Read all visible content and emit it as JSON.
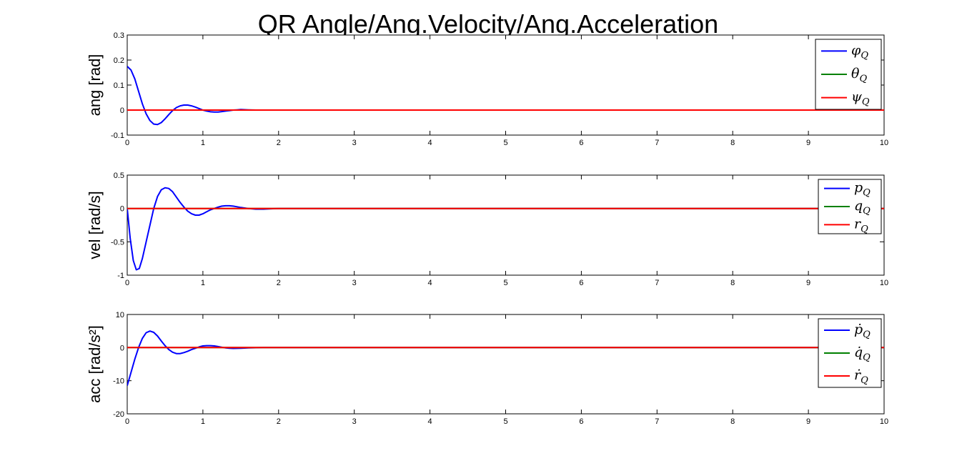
{
  "figure_title": "QR Angle/Ang.Velocity/Ang.Acceleration",
  "colors": {
    "blue": "#0000ff",
    "green": "#008000",
    "red": "#ff0000",
    "axis": "#000000",
    "background": "#ffffff"
  },
  "chart_data": [
    {
      "type": "line",
      "ylabel": "ang [rad]",
      "xlim": [
        0,
        10
      ],
      "ylim": [
        -0.1,
        0.3
      ],
      "xticks": [
        0,
        1,
        2,
        3,
        4,
        5,
        6,
        7,
        8,
        9,
        10
      ],
      "yticks": [
        -0.1,
        0,
        0.1,
        0.2,
        0.3
      ],
      "ytick_labels": [
        "-0.1",
        "0",
        "0.1",
        "0.2",
        "0.3"
      ],
      "grid": false,
      "legend_position": "top-right",
      "series": [
        {
          "name": "φ",
          "subscript": "Q",
          "color": "#0000ff",
          "x": [
            0,
            0.05,
            0.1,
            0.15,
            0.2,
            0.25,
            0.3,
            0.35,
            0.4,
            0.45,
            0.5,
            0.55,
            0.6,
            0.65,
            0.7,
            0.75,
            0.8,
            0.85,
            0.9,
            0.95,
            1.0,
            1.05,
            1.1,
            1.15,
            1.2,
            1.25,
            1.3,
            1.35,
            1.4,
            1.45,
            1.5,
            1.6,
            1.7,
            1.8,
            2.0,
            10
          ],
          "y": [
            0.175,
            0.16,
            0.125,
            0.075,
            0.025,
            -0.015,
            -0.042,
            -0.056,
            -0.058,
            -0.05,
            -0.035,
            -0.018,
            -0.002,
            0.01,
            0.017,
            0.02,
            0.02,
            0.017,
            0.012,
            0.006,
            0.0,
            -0.004,
            -0.007,
            -0.008,
            -0.008,
            -0.006,
            -0.004,
            -0.002,
            0.0,
            0.001,
            0.002,
            0.001,
            0.0,
            0.0,
            0.0,
            0.0
          ]
        },
        {
          "name": "θ",
          "subscript": "Q",
          "color": "#008000",
          "x": [
            0,
            10
          ],
          "y": [
            0,
            0
          ]
        },
        {
          "name": "ψ",
          "subscript": "Q",
          "color": "#ff0000",
          "x": [
            0,
            10
          ],
          "y": [
            0,
            0
          ]
        }
      ]
    },
    {
      "type": "line",
      "ylabel": "vel [rad/s]",
      "xlim": [
        0,
        10
      ],
      "ylim": [
        -1,
        0.5
      ],
      "xticks": [
        0,
        1,
        2,
        3,
        4,
        5,
        6,
        7,
        8,
        9,
        10
      ],
      "yticks": [
        -1,
        -0.5,
        0,
        0.5
      ],
      "ytick_labels": [
        "-1",
        "-0.5",
        "0",
        "0.5"
      ],
      "grid": false,
      "legend_position": "top-right",
      "series": [
        {
          "name": "p",
          "subscript": "Q",
          "color": "#0000ff",
          "x": [
            0,
            0.04,
            0.08,
            0.12,
            0.16,
            0.2,
            0.25,
            0.3,
            0.35,
            0.4,
            0.45,
            0.5,
            0.55,
            0.6,
            0.65,
            0.7,
            0.75,
            0.8,
            0.85,
            0.9,
            0.95,
            1.0,
            1.05,
            1.1,
            1.15,
            1.2,
            1.25,
            1.3,
            1.35,
            1.4,
            1.45,
            1.5,
            1.6,
            1.7,
            1.8,
            1.9,
            2.0,
            10
          ],
          "y": [
            0,
            -0.45,
            -0.78,
            -0.92,
            -0.9,
            -0.75,
            -0.5,
            -0.25,
            0.0,
            0.18,
            0.28,
            0.31,
            0.3,
            0.25,
            0.17,
            0.09,
            0.02,
            -0.04,
            -0.08,
            -0.1,
            -0.1,
            -0.08,
            -0.05,
            -0.02,
            0.0,
            0.02,
            0.035,
            0.04,
            0.04,
            0.035,
            0.025,
            0.015,
            0.0,
            -0.01,
            -0.01,
            -0.005,
            0.0,
            0.0
          ]
        },
        {
          "name": "q",
          "subscript": "Q",
          "color": "#008000",
          "x": [
            0,
            10
          ],
          "y": [
            0,
            0
          ]
        },
        {
          "name": "r",
          "subscript": "Q",
          "color": "#ff0000",
          "x": [
            0,
            10
          ],
          "y": [
            0,
            0
          ]
        }
      ]
    },
    {
      "type": "line",
      "ylabel": "acc [rad/s²]",
      "xlim": [
        0,
        10
      ],
      "ylim": [
        -20,
        10
      ],
      "xticks": [
        0,
        1,
        2,
        3,
        4,
        5,
        6,
        7,
        8,
        9,
        10
      ],
      "yticks": [
        -20,
        -10,
        0,
        10
      ],
      "ytick_labels": [
        "-20",
        "-10",
        "0",
        "10"
      ],
      "grid": false,
      "legend_position": "top-right",
      "series": [
        {
          "name": "ṗ",
          "subscript": "Q",
          "color": "#0000ff",
          "x": [
            0,
            0.05,
            0.1,
            0.15,
            0.2,
            0.25,
            0.3,
            0.35,
            0.4,
            0.45,
            0.5,
            0.55,
            0.6,
            0.65,
            0.7,
            0.75,
            0.8,
            0.85,
            0.9,
            0.95,
            1.0,
            1.05,
            1.1,
            1.15,
            1.2,
            1.25,
            1.3,
            1.35,
            1.4,
            1.5,
            1.6,
            1.8,
            2.0,
            10
          ],
          "y": [
            -11.5,
            -7.5,
            -3.5,
            0.0,
            2.8,
            4.5,
            5.0,
            4.6,
            3.5,
            2.0,
            0.6,
            -0.6,
            -1.4,
            -1.8,
            -1.8,
            -1.5,
            -1.1,
            -0.6,
            -0.2,
            0.2,
            0.5,
            0.6,
            0.6,
            0.5,
            0.3,
            0.1,
            -0.1,
            -0.2,
            -0.25,
            -0.2,
            -0.1,
            0.0,
            0.0,
            0.0
          ]
        },
        {
          "name": "q̇",
          "subscript": "Q",
          "color": "#008000",
          "x": [
            0,
            10
          ],
          "y": [
            0,
            0
          ]
        },
        {
          "name": "ṙ",
          "subscript": "Q",
          "color": "#ff0000",
          "x": [
            0,
            10
          ],
          "y": [
            0,
            0
          ]
        }
      ]
    }
  ]
}
